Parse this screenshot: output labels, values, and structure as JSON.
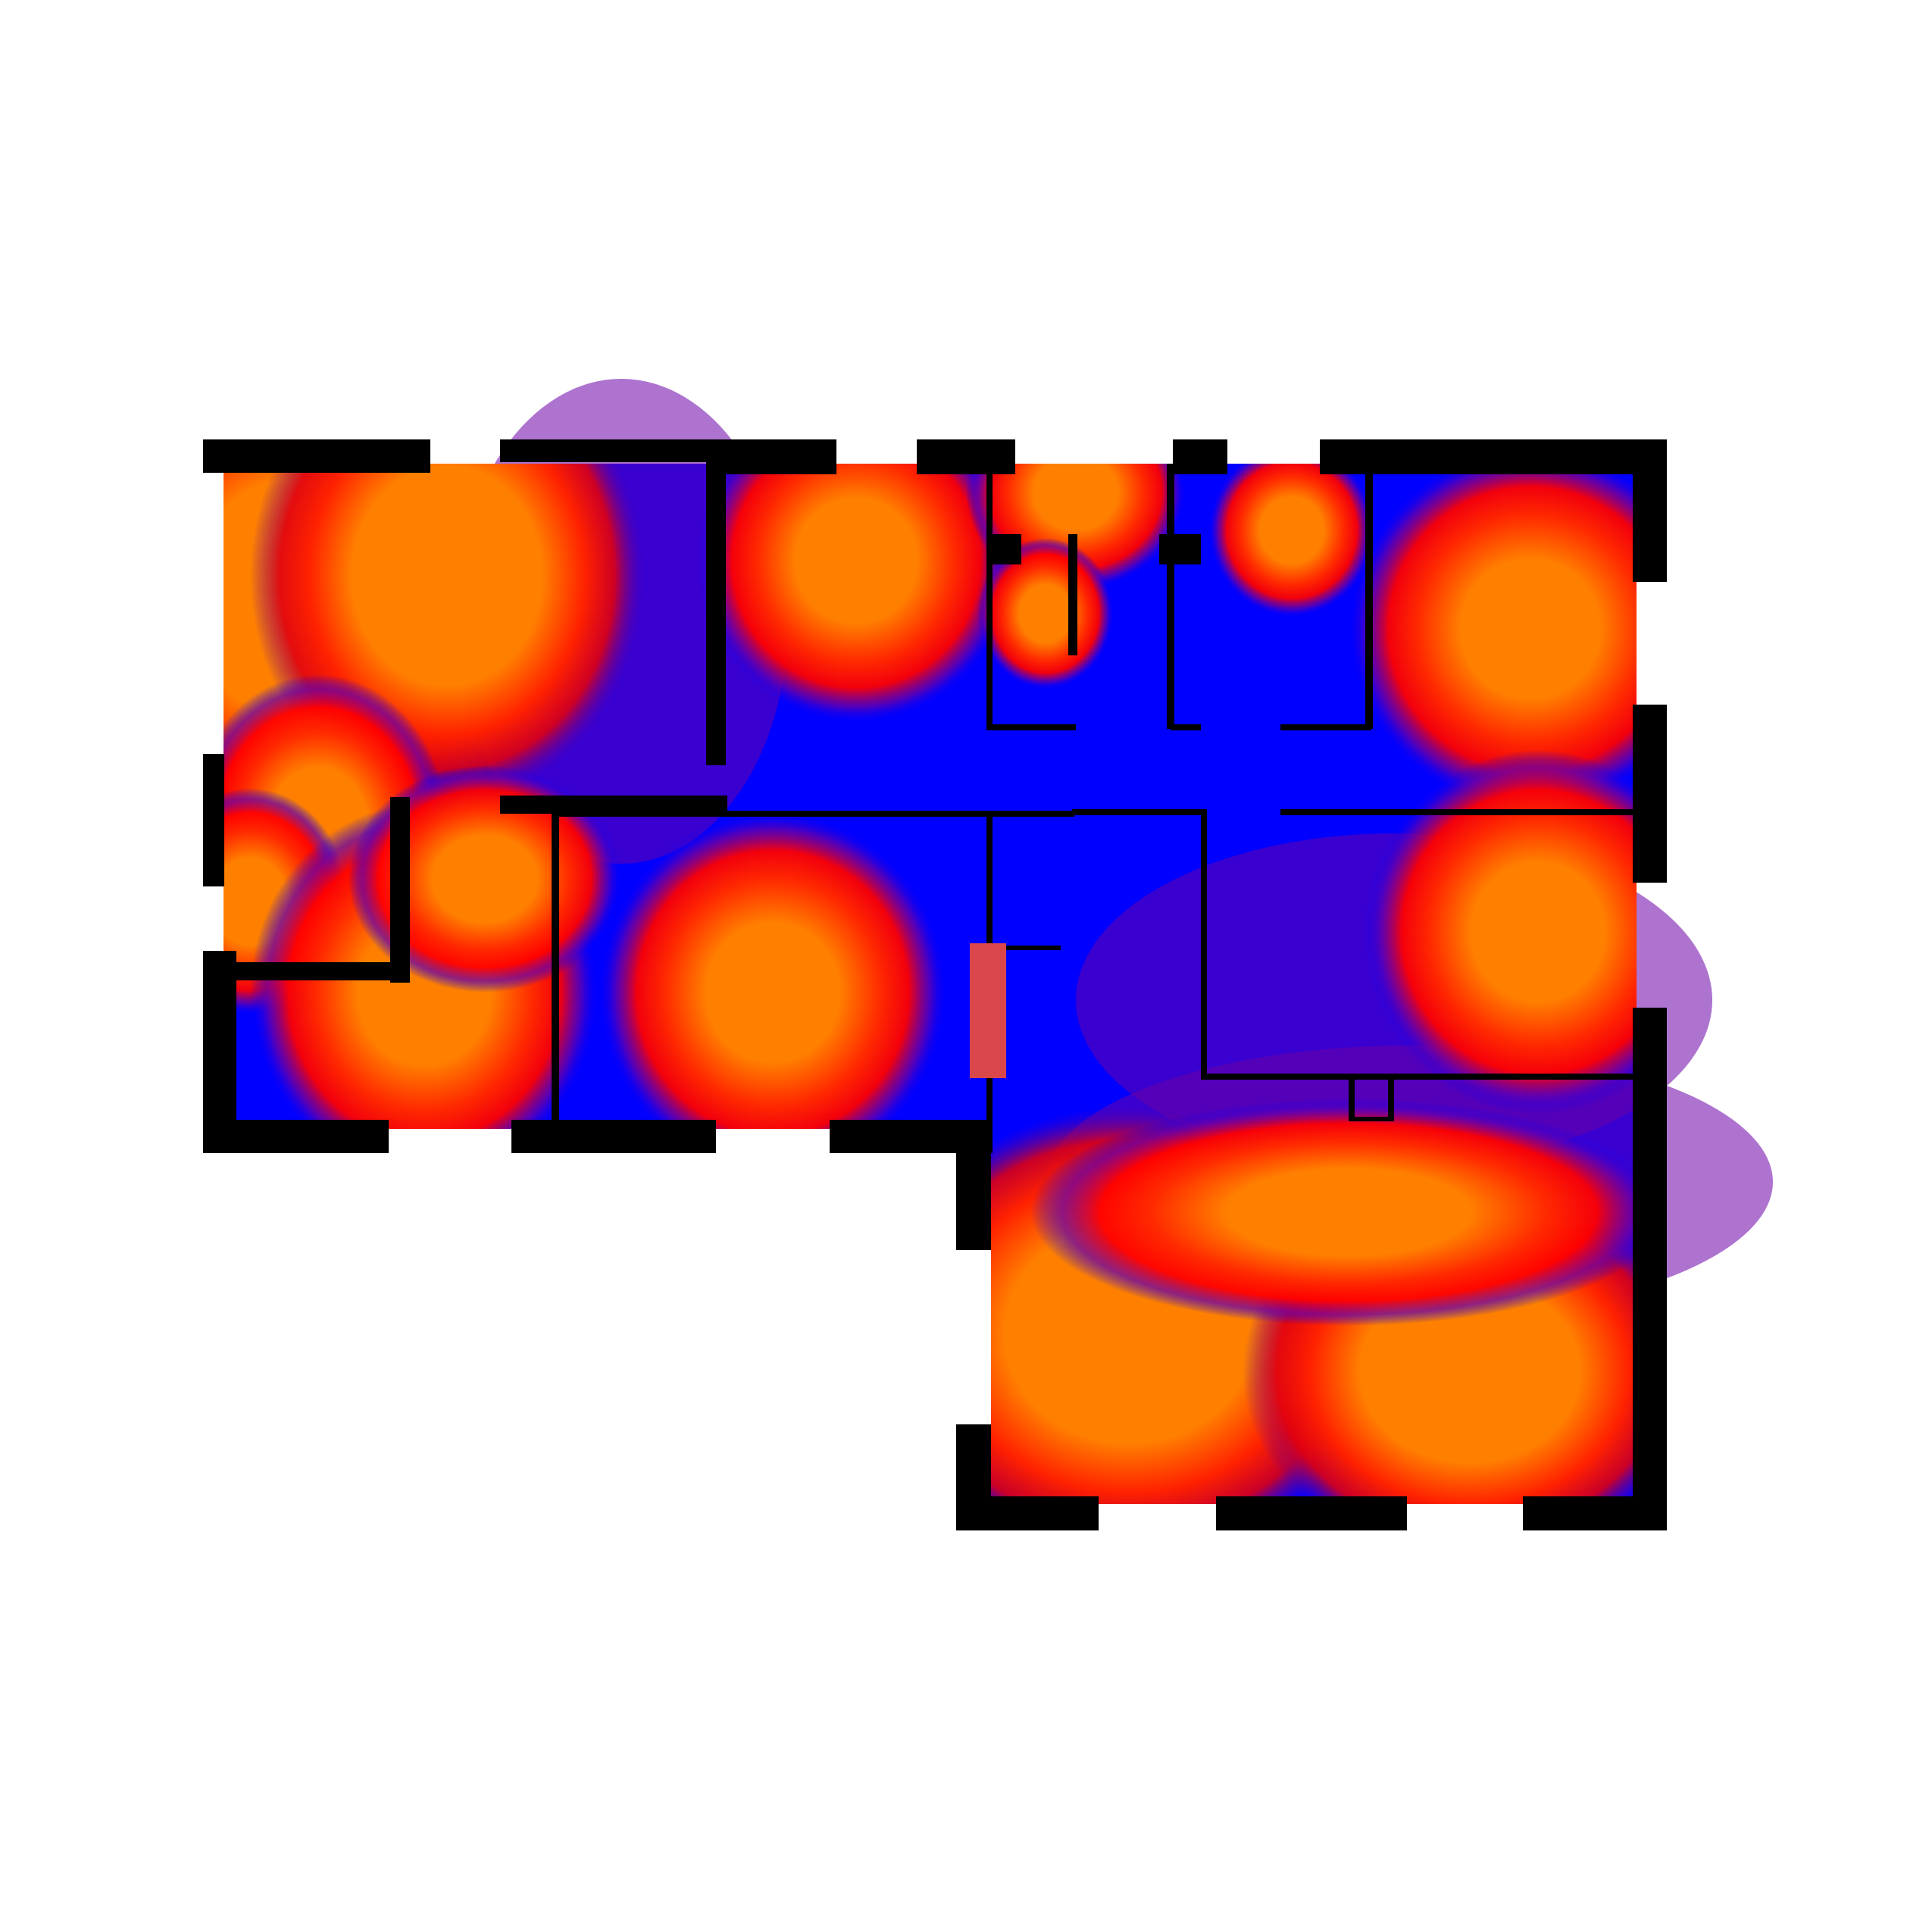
{
  "diagram": {
    "kind": "floor-plan-coverage-heatmap",
    "background": "#ffffff",
    "colors": {
      "strong": "#ff8000",
      "medium": "#ff0000",
      "weak_purple": "#6a00a8",
      "weak": "#0000ff",
      "wall": "#000000",
      "marker": "#d9474a"
    },
    "rooms": [
      {
        "id": "room-top-left",
        "hot_spots": 2
      },
      {
        "id": "room-top-center",
        "hot_spots": 1
      },
      {
        "id": "room-top-closet",
        "hot_spots": 1
      },
      {
        "id": "room-top-right-small",
        "hot_spots": 1
      },
      {
        "id": "room-top-right",
        "hot_spots": 1
      },
      {
        "id": "room-hall",
        "hot_spots": 0
      },
      {
        "id": "room-left-lower",
        "hot_spots": 2
      },
      {
        "id": "room-center-lower",
        "hot_spots": 1
      },
      {
        "id": "room-right-middle",
        "hot_spots": 1
      },
      {
        "id": "room-bottom-right",
        "hot_spots": 2
      }
    ],
    "markers": [
      {
        "id": "access-point-marker",
        "color": "#d9474a"
      }
    ]
  }
}
